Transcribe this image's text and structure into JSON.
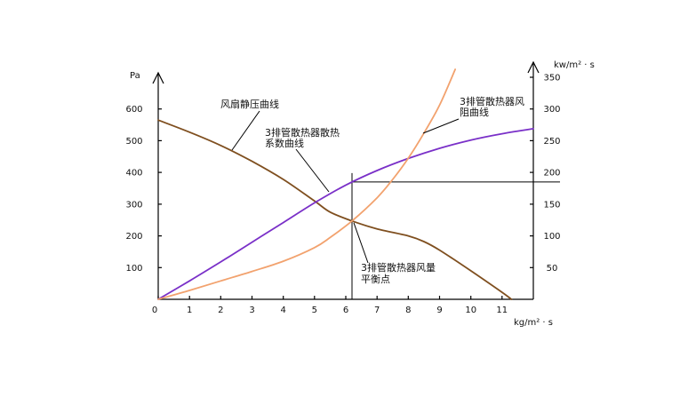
{
  "chart_data": {
    "type": "line",
    "xlabel": "kg/m² · s",
    "ylabel_left": "Pa",
    "ylabel_right": "kw/m² · s",
    "xlim": [
      0,
      12
    ],
    "ylim_left": [
      0,
      700
    ],
    "ylim_right": [
      0,
      350
    ],
    "x_ticks": [
      0,
      1,
      2,
      3,
      4,
      5,
      6,
      7,
      8,
      9,
      10,
      11
    ],
    "y_left_ticks": [
      100,
      200,
      300,
      400,
      500,
      600
    ],
    "y_right_ticks": [
      50,
      100,
      150,
      200,
      250,
      300,
      350
    ],
    "grid": false,
    "series": [
      {
        "label_lines": [
          "风扇静压曲线"
        ],
        "axis": "left",
        "color": "#7f4f1f",
        "x": [
          0,
          1,
          2,
          3,
          4,
          5,
          5.5,
          6.2,
          7,
          8,
          8.5,
          9,
          10,
          11,
          11.3
        ],
        "y": [
          565,
          527,
          485,
          435,
          378,
          310,
          275,
          247,
          222,
          200,
          182,
          155,
          90,
          22,
          0
        ]
      },
      {
        "label_lines": [
          "3排管散热器散热",
          "系数曲线"
        ],
        "axis": "right",
        "color": "#7a30c8",
        "x": [
          0,
          1,
          2,
          3,
          4,
          5,
          6,
          7,
          8,
          9,
          10,
          11,
          12
        ],
        "y": [
          0,
          29,
          59,
          90,
          121,
          152,
          180,
          203,
          222,
          238,
          251,
          261,
          269
        ]
      },
      {
        "label_lines": [
          "3排管散热器风",
          "阻曲线"
        ],
        "axis": "left",
        "color": "#f2a26e",
        "x": [
          0,
          1,
          2,
          3,
          4,
          5,
          5.5,
          6.2,
          7,
          7.5,
          8,
          8.5,
          9,
          9.5
        ],
        "y": [
          0,
          28,
          58,
          88,
          120,
          163,
          195,
          247,
          320,
          378,
          445,
          524,
          612,
          725
        ]
      }
    ],
    "balance_point": {
      "label_lines": [
        "3排管散热器风量",
        "平衡点"
      ],
      "x": 6.2,
      "y_left": 247,
      "y_right": 185
    }
  }
}
